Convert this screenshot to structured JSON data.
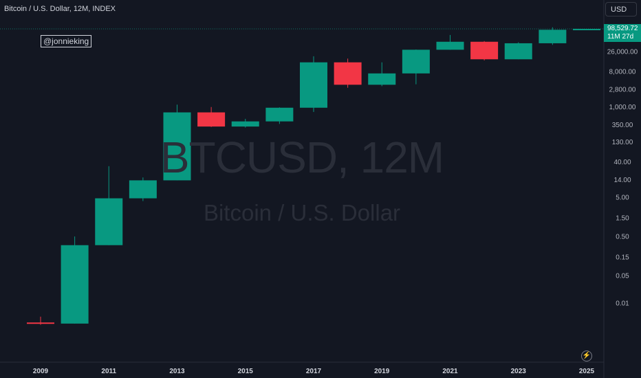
{
  "header": {
    "title": "Bitcoin / U.S. Dollar, 12M, INDEX",
    "currency_button": "USD"
  },
  "watermark": {
    "author": "@jonnieking",
    "symbol": "BTCUSD, 12M",
    "description": "Bitcoin / U.S. Dollar"
  },
  "last_price": {
    "value": "98,529.72",
    "countdown": "11M 27d",
    "color": "#089981"
  },
  "icons": {
    "bottom_right": "lightning-bolt-icon"
  },
  "chart_data": {
    "type": "candlestick",
    "scale": "log",
    "ylim": [
      0.002,
      130000
    ],
    "y_tick_labels": [
      "26,000.00",
      "8,000.00",
      "2,800.00",
      "1,000.00",
      "350.00",
      "130.00",
      "40.00",
      "14.00",
      "5.00",
      "1.50",
      "0.50",
      "0.15",
      "0.05",
      "0.01"
    ],
    "y_tick_values": [
      26000,
      8000,
      2800,
      1000,
      350,
      130,
      40,
      14,
      5,
      1.5,
      0.5,
      0.15,
      0.05,
      0.01
    ],
    "x_tick_labels": [
      "2009",
      "2011",
      "2013",
      "2015",
      "2017",
      "2019",
      "2021",
      "2023",
      "2025"
    ],
    "colors": {
      "up": "#089981",
      "down": "#f23645"
    },
    "candles": [
      {
        "year": 2009,
        "open": 0.0032,
        "high": 0.0045,
        "low": 0.0028,
        "close": 0.003
      },
      {
        "year": 2010,
        "open": 0.003,
        "high": 0.5,
        "low": 0.003,
        "close": 0.3
      },
      {
        "year": 2011,
        "open": 0.3,
        "high": 31,
        "low": 0.3,
        "close": 4.7
      },
      {
        "year": 2012,
        "open": 4.7,
        "high": 16,
        "low": 4,
        "close": 13.5
      },
      {
        "year": 2013,
        "open": 13.5,
        "high": 1150,
        "low": 13.5,
        "close": 730
      },
      {
        "year": 2014,
        "open": 730,
        "high": 1000,
        "low": 310,
        "close": 318
      },
      {
        "year": 2015,
        "open": 318,
        "high": 500,
        "low": 300,
        "close": 430
      },
      {
        "year": 2016,
        "open": 430,
        "high": 980,
        "low": 370,
        "close": 960
      },
      {
        "year": 2017,
        "open": 960,
        "high": 19700,
        "low": 750,
        "close": 13800
      },
      {
        "year": 2018,
        "open": 13800,
        "high": 17200,
        "low": 3100,
        "close": 3700
      },
      {
        "year": 2019,
        "open": 3700,
        "high": 13800,
        "low": 3400,
        "close": 7200
      },
      {
        "year": 2020,
        "open": 7200,
        "high": 29300,
        "low": 3800,
        "close": 28900
      },
      {
        "year": 2021,
        "open": 28900,
        "high": 69000,
        "low": 28800,
        "close": 46200
      },
      {
        "year": 2022,
        "open": 46200,
        "high": 48000,
        "low": 15500,
        "close": 16500
      },
      {
        "year": 2023,
        "open": 16500,
        "high": 44700,
        "low": 16500,
        "close": 42300
      },
      {
        "year": 2024,
        "open": 42300,
        "high": 108000,
        "low": 38500,
        "close": 93400
      },
      {
        "year": 2025,
        "open": 93400,
        "high": 98600,
        "low": 92800,
        "close": 98529.72
      }
    ]
  }
}
